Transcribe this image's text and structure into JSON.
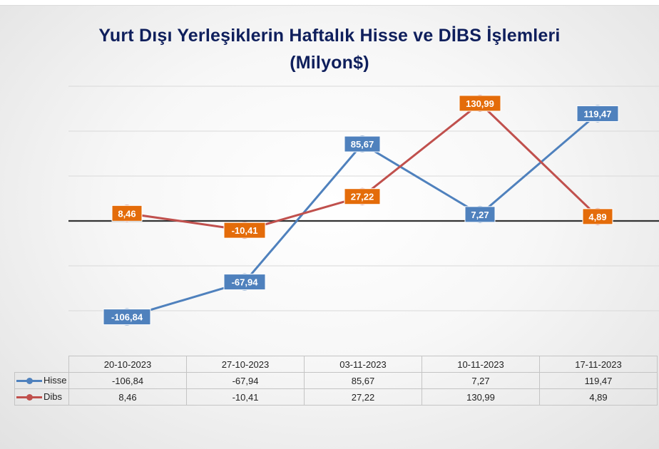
{
  "colors": {
    "hisse": "#4f81bd",
    "dibs": "#c0504d",
    "hisse_label_bg": "#4f81bd",
    "dibs_label_bg": "#e46c0a",
    "title": "#0f1f5c",
    "zero_line": "#333333",
    "grid": "#d9d9d9"
  },
  "chart_data": {
    "type": "line",
    "title": "Yurt Dışı Yerleşiklerin Haftalık Hisse ve DİBS İşlemleri",
    "subtitle": "(Milyon$)",
    "categories": [
      "20-10-2023",
      "27-10-2023",
      "03-11-2023",
      "10-11-2023",
      "17-11-2023"
    ],
    "series": [
      {
        "name": "Hisse",
        "values": [
          -106.84,
          -67.94,
          85.67,
          7.27,
          119.47
        ],
        "labels": [
          "-106,84",
          "-67,94",
          "85,67",
          "7,27",
          "119,47"
        ]
      },
      {
        "name": "Dibs",
        "values": [
          8.46,
          -10.41,
          27.22,
          130.99,
          4.89
        ],
        "labels": [
          "8,46",
          "-10,41",
          "27,22",
          "130,99",
          "4,89"
        ]
      }
    ],
    "ylim": [
      -200,
      150
    ],
    "y_gridlines": [
      -100,
      -50,
      0,
      50,
      100,
      150
    ],
    "zero_line": true,
    "data_table": true,
    "legend": "data table"
  }
}
